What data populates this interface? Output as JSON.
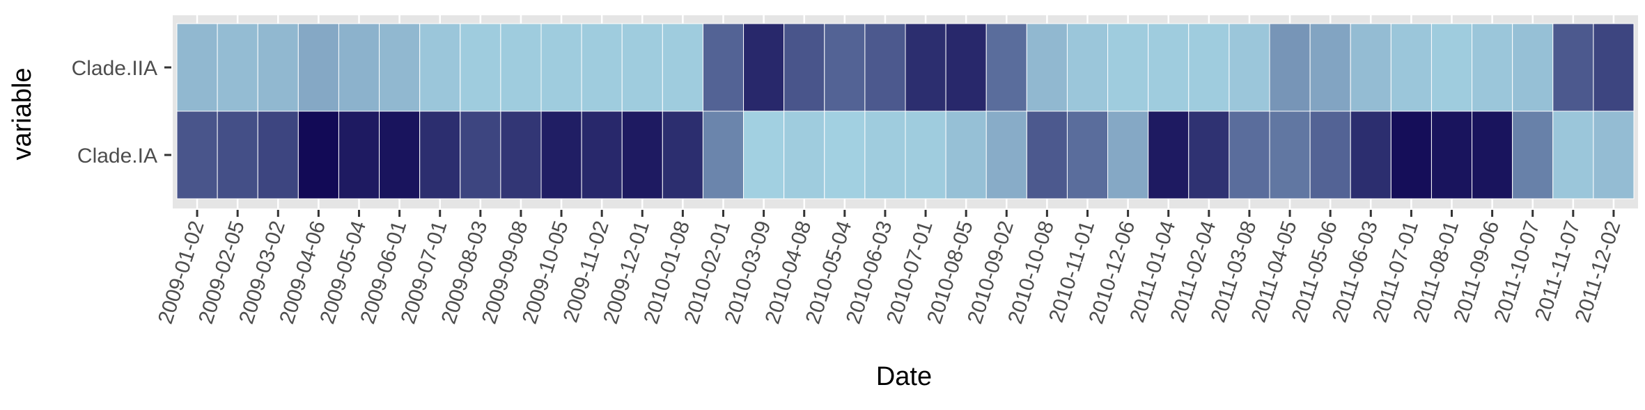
{
  "chart_data": {
    "type": "heatmap",
    "xlabel": "Date",
    "ylabel": "variable",
    "x": [
      "2009-01-02",
      "2009-02-05",
      "2009-03-02",
      "2009-04-06",
      "2009-05-04",
      "2009-06-01",
      "2009-07-01",
      "2009-08-03",
      "2009-09-08",
      "2009-10-05",
      "2009-11-02",
      "2009-12-01",
      "2010-01-08",
      "2010-02-01",
      "2010-03-09",
      "2010-04-08",
      "2010-05-04",
      "2010-06-03",
      "2010-07-01",
      "2010-08-05",
      "2010-09-02",
      "2010-10-08",
      "2010-11-01",
      "2010-12-06",
      "2011-01-04",
      "2011-02-04",
      "2011-03-08",
      "2011-04-05",
      "2011-05-06",
      "2011-06-03",
      "2011-07-01",
      "2011-08-01",
      "2011-09-06",
      "2011-10-07",
      "2011-11-07",
      "2011-12-02"
    ],
    "y": [
      "Clade.IIA",
      "Clade.IA"
    ],
    "color_scale": {
      "low": "#a2d0e1",
      "high": "#120a56"
    },
    "grid": true,
    "legend": "none",
    "values": [
      [
        0.12,
        0.1,
        0.12,
        0.2,
        0.15,
        0.12,
        0.05,
        0.02,
        0.02,
        0.02,
        0.02,
        0.02,
        0.02,
        0.55,
        0.85,
        0.62,
        0.55,
        0.6,
        0.82,
        0.85,
        0.5,
        0.12,
        0.05,
        0.02,
        0.02,
        0.02,
        0.05,
        0.3,
        0.22,
        0.1,
        0.05,
        0.02,
        0.05,
        0.08,
        0.6,
        0.7
      ],
      [
        0.62,
        0.65,
        0.7,
        1.0,
        0.92,
        0.95,
        0.82,
        0.7,
        0.78,
        0.9,
        0.85,
        0.92,
        0.82,
        0.38,
        0.0,
        0.02,
        0.0,
        0.02,
        0.02,
        0.08,
        0.18,
        0.6,
        0.5,
        0.2,
        0.92,
        0.8,
        0.5,
        0.45,
        0.55,
        0.82,
        0.98,
        0.95,
        0.95,
        0.4,
        0.05,
        0.1
      ]
    ]
  }
}
